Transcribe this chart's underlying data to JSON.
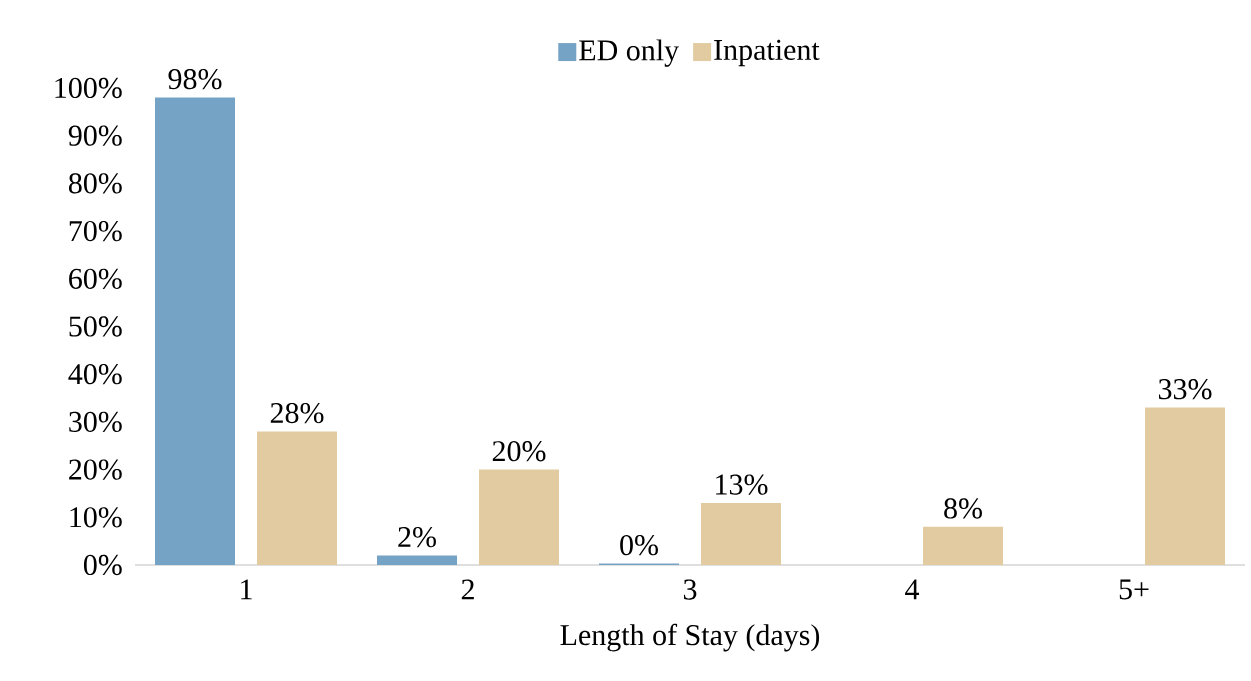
{
  "chart_data": {
    "type": "bar",
    "xlabel": "Length of Stay (days)",
    "categories": [
      "1",
      "2",
      "3",
      "4",
      "5+"
    ],
    "series": [
      {
        "name": "ED only",
        "color": "#75a3c6",
        "values": [
          98,
          2,
          0.3,
          null,
          null
        ],
        "value_labels": [
          "98%",
          "2%",
          "0%",
          null,
          null
        ]
      },
      {
        "name": "Inpatient",
        "color": "#e2cba0",
        "values": [
          28,
          20,
          13,
          8,
          33
        ],
        "value_labels": [
          "28%",
          "20%",
          "13%",
          "8%",
          "33%"
        ]
      }
    ],
    "ylim": [
      0,
      100
    ],
    "yticks": [
      {
        "value": 0,
        "label": "0%"
      },
      {
        "value": 10,
        "label": "10%"
      },
      {
        "value": 20,
        "label": "20%"
      },
      {
        "value": 30,
        "label": "30%"
      },
      {
        "value": 40,
        "label": "40%"
      },
      {
        "value": 50,
        "label": "50%"
      },
      {
        "value": 60,
        "label": "60%"
      },
      {
        "value": 70,
        "label": "70%"
      },
      {
        "value": 80,
        "label": "80%"
      },
      {
        "value": 90,
        "label": "90%"
      },
      {
        "value": 100,
        "label": "100%"
      }
    ],
    "legend": "top"
  }
}
